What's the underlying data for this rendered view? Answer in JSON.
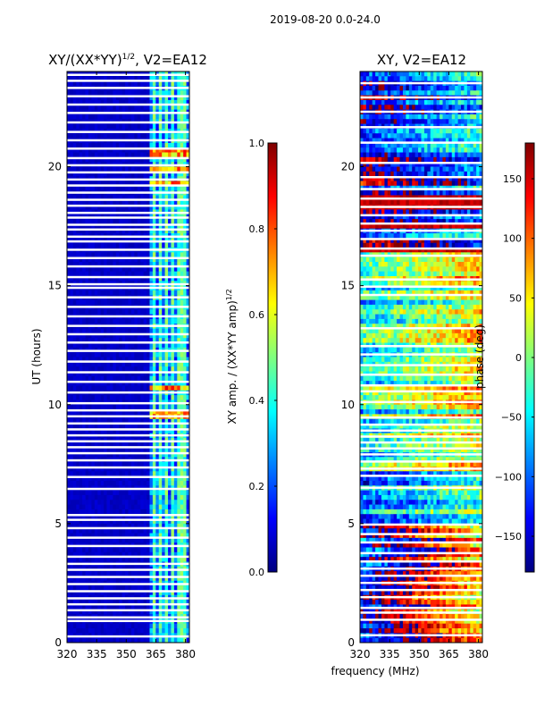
{
  "figure": {
    "suptitle": "2019-08-20 0.0-24.0",
    "shared_xlabel": "frequency (MHz)"
  },
  "colors": {
    "jet_stops": [
      "#00007f",
      "#0000ff",
      "#007fff",
      "#00ffff",
      "#7fff7f",
      "#ffff00",
      "#ff7f00",
      "#ff0000",
      "#7f0000"
    ],
    "gap": "#ffffff"
  },
  "chart_data": [
    {
      "type": "heatmap",
      "id": "left",
      "title_main": "XY/(XX*YY)",
      "title_sup": "1/2",
      "title_tail": ", V2=EA12",
      "xlabel": "",
      "ylabel": "UT (hours)",
      "xlim": [
        320,
        382
      ],
      "ylim": [
        0,
        24
      ],
      "xticks": [
        320,
        335,
        350,
        365,
        380
      ],
      "yticks": [
        0,
        5,
        10,
        15,
        20
      ],
      "colorbar": {
        "label_main": "XY amp. / (XX*YY amp)",
        "label_sup": "1/2",
        "range": [
          0.0,
          1.0
        ],
        "ticks": [
          "0.0",
          "0.2",
          "0.4",
          "0.6",
          "0.8",
          "1.0"
        ],
        "tick_values": [
          0.0,
          0.2,
          0.4,
          0.6,
          0.8,
          1.0
        ]
      },
      "gap_hours": [
        0.25,
        0.9,
        1.05,
        1.35,
        1.6,
        1.85,
        2.15,
        2.45,
        2.75,
        3.05,
        3.3,
        3.6,
        4.05,
        4.4,
        4.8,
        5.15,
        5.35,
        6.45,
        6.95,
        7.35,
        7.65,
        7.95,
        8.2,
        8.45,
        8.7,
        8.95,
        9.2,
        9.5,
        9.75,
        10.05,
        10.5,
        10.95,
        11.35,
        11.8,
        12.25,
        12.6,
        12.95,
        13.3,
        13.7,
        14.1,
        14.5,
        14.9,
        15.05,
        15.35,
        15.8,
        16.15,
        16.5,
        16.85,
        17.05,
        17.35,
        17.55,
        17.85,
        18.05,
        18.35,
        18.6,
        18.9,
        19.2,
        19.45,
        19.75,
        20.05,
        20.35,
        20.75,
        21.1,
        21.45,
        21.85,
        22.25,
        22.6,
        22.95,
        23.3,
        23.6,
        23.85
      ],
      "bright_channels_mhz": [
        364,
        367,
        370,
        373,
        376,
        379
      ],
      "hot_rows_hours": [
        10.65,
        9.55,
        19.3,
        19.9,
        20.6
      ]
    },
    {
      "type": "heatmap",
      "id": "right",
      "title_main": "XY, V2=EA12",
      "xlabel": "frequency (MHz)",
      "ylabel": "",
      "xlim": [
        320,
        382
      ],
      "ylim": [
        0,
        24
      ],
      "xticks": [
        320,
        335,
        350,
        365,
        380
      ],
      "yticks": [
        0,
        5,
        10,
        15,
        20
      ],
      "colorbar": {
        "label_main": "phase (deg)",
        "range": [
          -180,
          180
        ],
        "ticks": [
          "−150",
          "−100",
          "−50",
          "0",
          "50",
          "100",
          "150"
        ],
        "tick_values": [
          -150,
          -100,
          -50,
          0,
          50,
          100,
          150
        ]
      },
      "gap_hours": [
        0.3,
        0.95,
        1.25,
        1.45,
        1.9,
        2.2,
        2.5,
        2.8,
        3.1,
        3.4,
        3.75,
        4.2,
        4.55,
        4.95,
        6.5,
        7.0,
        7.3,
        7.6,
        7.9,
        8.15,
        8.4,
        8.65,
        8.9,
        9.15,
        9.45,
        10.1,
        10.55,
        10.8,
        11.25,
        11.65,
        12.1,
        12.45,
        13.2,
        14.6,
        14.95,
        15.25,
        16.25,
        16.55,
        16.95,
        17.3,
        17.6,
        17.95,
        18.3,
        18.65,
        19.05,
        19.55,
        20.15,
        21.0,
        21.65,
        22.3,
        22.9,
        23.5
      ],
      "phase_regimes": [
        {
          "from_hour": 0.0,
          "to_hour": 5.0,
          "mean_deg": 150,
          "note": "mostly red"
        },
        {
          "from_hour": 5.0,
          "to_hour": 7.2,
          "mean_deg": -40,
          "note": "cyan/green"
        },
        {
          "from_hour": 7.2,
          "to_hour": 16.5,
          "mean_deg": 0,
          "note": "mixed"
        },
        {
          "from_hour": 16.5,
          "to_hour": 24.0,
          "mean_deg": -120,
          "note": "blue with red bands"
        }
      ],
      "red_bands_hours": [
        18.3,
        18.6,
        17.45,
        16.5
      ]
    }
  ]
}
